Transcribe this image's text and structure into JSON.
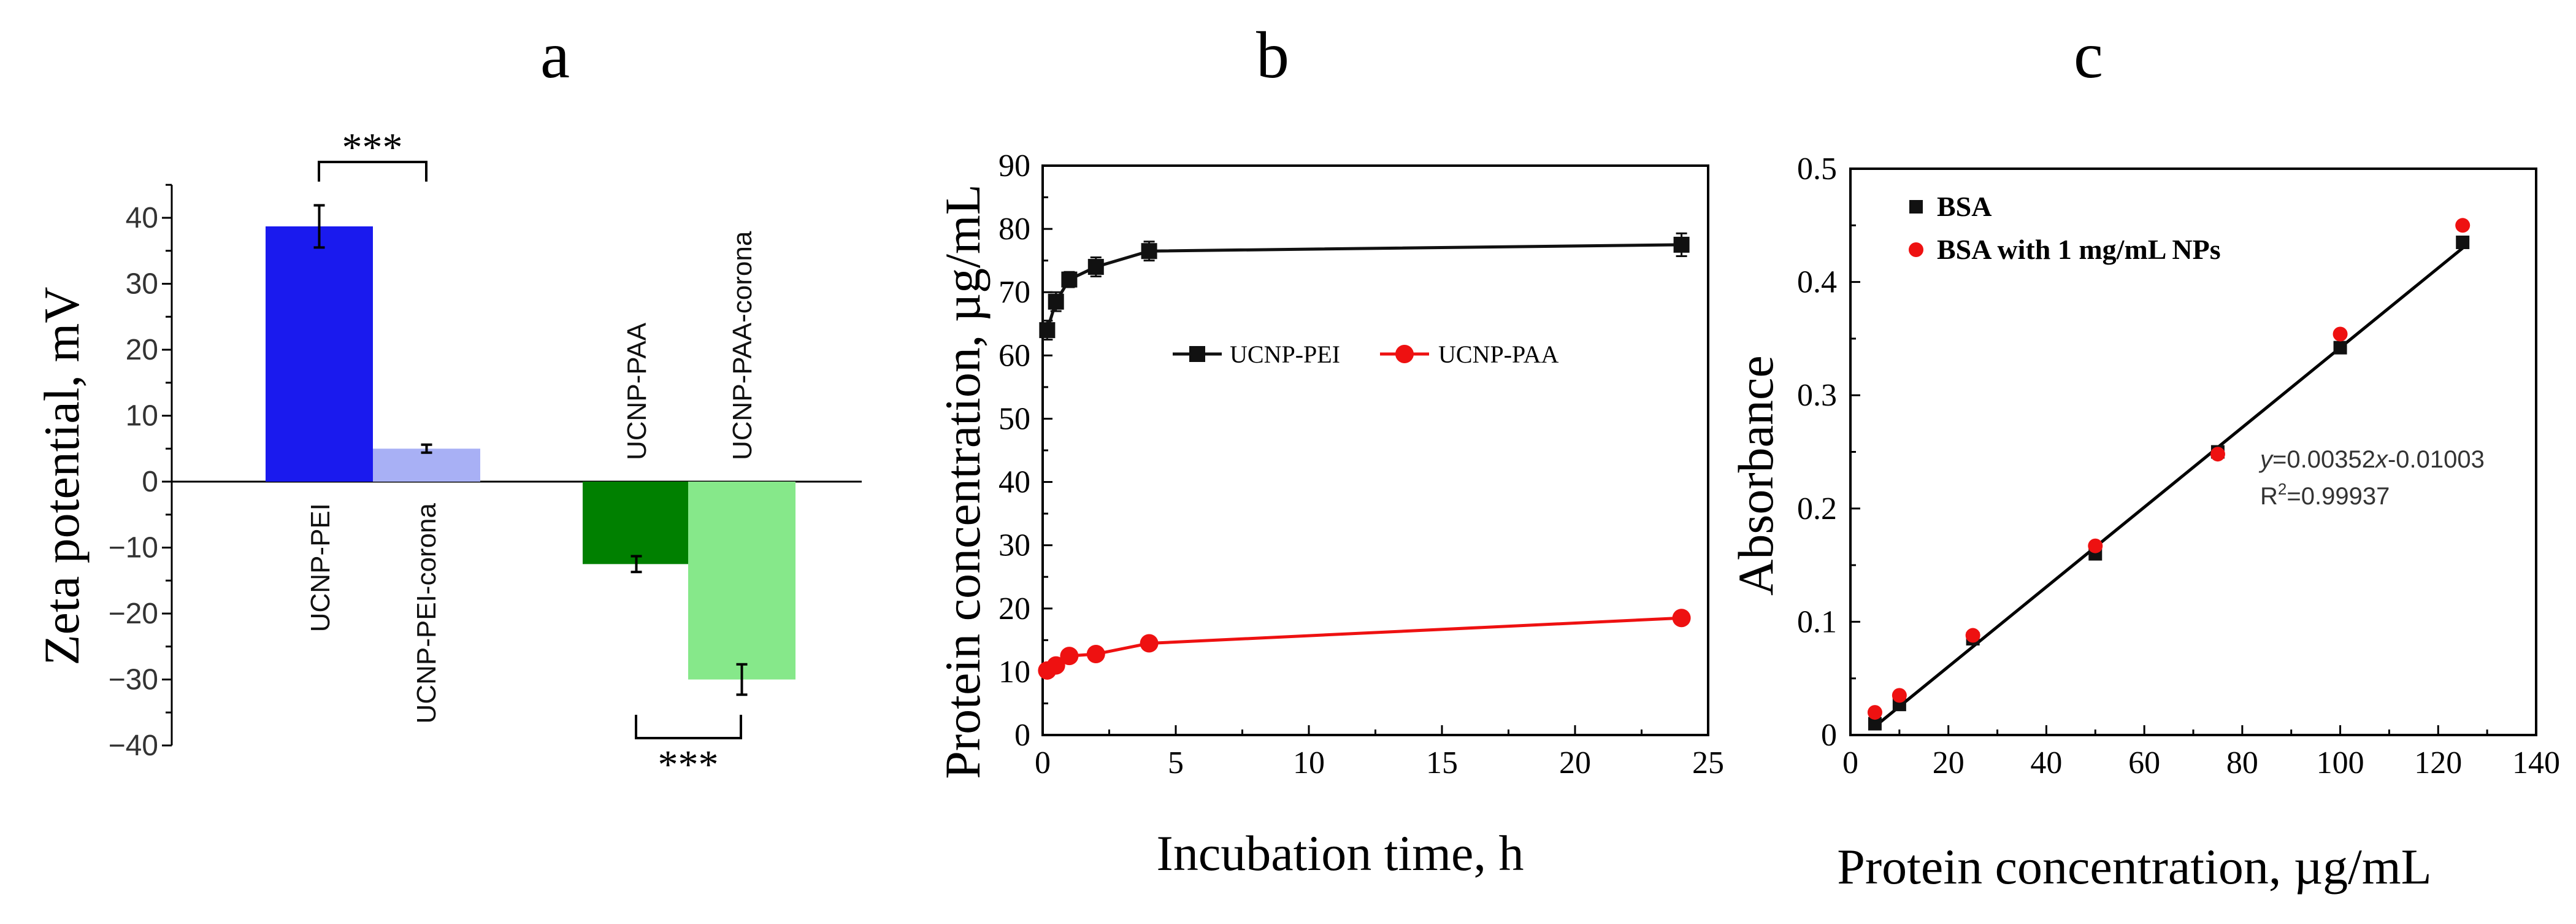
{
  "panels": [
    {
      "letter": "a",
      "chart_data": {
        "type": "bar",
        "title": "a",
        "ylabel": "Zeta potential, mV",
        "xlabel": "",
        "ylim": [
          -40,
          45
        ],
        "yticks": [
          40,
          30,
          20,
          10,
          0,
          -10,
          -20,
          -30,
          -40
        ],
        "grid": false,
        "categories": [
          "UCNP-PEI",
          "UCNP-PEI-corona",
          "UCNP-PAA",
          "UCNP-PAA-corona"
        ],
        "values": [
          38.7,
          5.0,
          -12.5,
          -30.0
        ],
        "errors": [
          3.2,
          0.6,
          1.2,
          2.3
        ],
        "colors": [
          "#1a1aee",
          "#a8b0f5",
          "#008000",
          "#86e88a"
        ],
        "annotations": [
          {
            "text": "***",
            "between": [
              "UCNP-PEI",
              "UCNP-PEI-corona"
            ]
          },
          {
            "text": "***",
            "between": [
              "UCNP-PAA",
              "UCNP-PAA-corona"
            ]
          }
        ]
      }
    },
    {
      "letter": "b",
      "chart_data": {
        "type": "line",
        "title": "b",
        "xlabel": "Incubation time, h",
        "ylabel": "Protein concentration, µg/mL",
        "xlim": [
          0,
          25
        ],
        "ylim": [
          0,
          90
        ],
        "xticks": [
          0,
          5,
          10,
          15,
          20,
          25
        ],
        "yticks": [
          0,
          10,
          20,
          30,
          40,
          50,
          60,
          70,
          80,
          90
        ],
        "grid": false,
        "legend": "center",
        "series": [
          {
            "name": "UCNP-PEI",
            "color": "#111111",
            "marker": "square",
            "x": [
              0.17,
              0.5,
              1,
              2,
              4,
              24
            ],
            "y": [
              64.0,
              68.5,
              72.0,
              74.0,
              76.5,
              77.5
            ],
            "err": [
              1.5,
              1.5,
              1.2,
              1.5,
              1.5,
              1.8
            ]
          },
          {
            "name": "UCNP-PAA",
            "color": "#ee1111",
            "marker": "circle",
            "x": [
              0.17,
              0.5,
              1,
              2,
              4,
              24
            ],
            "y": [
              10.2,
              11.0,
              12.5,
              12.8,
              14.5,
              18.5
            ],
            "err": [
              0.5,
              0.5,
              0.5,
              0.5,
              0.5,
              0.5
            ]
          }
        ]
      }
    },
    {
      "letter": "c",
      "chart_data": {
        "type": "scatter",
        "title": "c",
        "xlabel": "Protein concentration, µg/mL",
        "ylabel": "Absorbance",
        "xlim": [
          0,
          140
        ],
        "ylim": [
          0,
          0.5
        ],
        "xticks": [
          0,
          20,
          40,
          60,
          80,
          100,
          120,
          140
        ],
        "yticks": [
          0,
          0.1,
          0.2,
          0.3,
          0.4,
          0.5
        ],
        "grid": false,
        "legend": "top-left",
        "series": [
          {
            "name": "BSA",
            "color": "#111111",
            "marker": "square",
            "x": [
              5,
              10,
              25,
              50,
              75,
              100,
              125
            ],
            "y": [
              0.01,
              0.027,
              0.085,
              0.16,
              0.25,
              0.342,
              0.435
            ]
          },
          {
            "name": "BSA with 1 mg/mL NPs",
            "color": "#ee1111",
            "marker": "circle",
            "x": [
              5,
              10,
              25,
              50,
              75,
              100,
              125
            ],
            "y": [
              0.02,
              0.035,
              0.088,
              0.167,
              0.248,
              0.354,
              0.45
            ]
          }
        ],
        "fit": {
          "slope": 0.00352,
          "intercept": -0.01003,
          "x_range": [
            5,
            125
          ]
        },
        "equation_prefix": "y",
        "equation_body": "=0.00352",
        "equation_var": "x",
        "equation_tail": "-0.01003",
        "r2_label": "R",
        "r2_sup": "2",
        "r2_value": "=0.99937"
      }
    }
  ]
}
